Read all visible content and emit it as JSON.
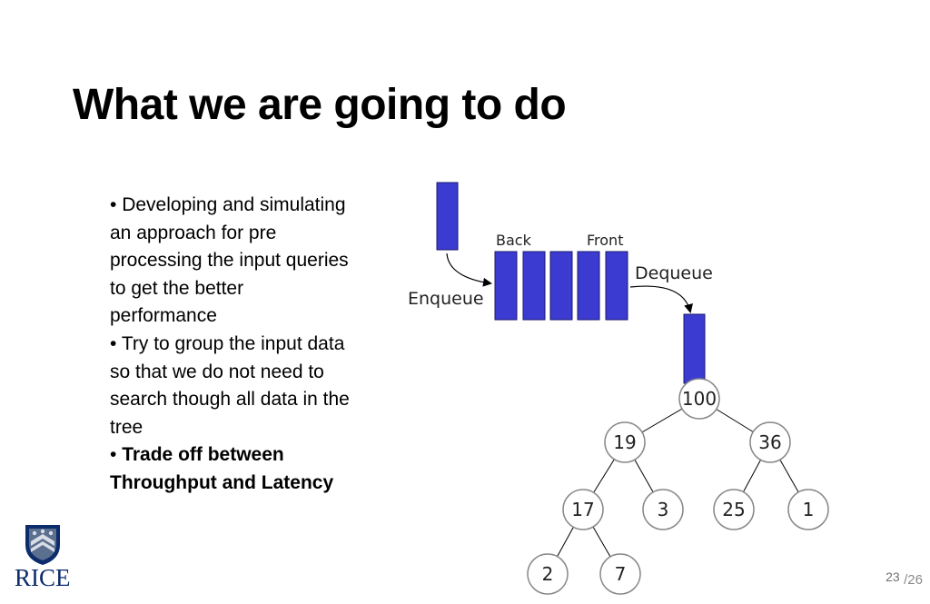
{
  "slide": {
    "title": "What we are going to do",
    "bullets": [
      {
        "marker": "•",
        "text": "Developing and simulating an approach for pre processing the input queries to get the better performance"
      },
      {
        "marker": "•",
        "text": "Try to group the input data so that we do not need to search though all data in the tree"
      },
      {
        "marker": "•",
        "text": "Trade off between Throughput and Latency"
      }
    ],
    "page_current": "23",
    "page_total": "/26"
  },
  "diagram": {
    "labels": {
      "back": "Back",
      "front": "Front",
      "enqueue": "Enqueue",
      "dequeue": "Dequeue"
    },
    "queue_color": "#3b3bd1",
    "tree": {
      "root": "100",
      "left": "19",
      "right": "36",
      "left_left": "17",
      "left_right": "3",
      "right_left": "25",
      "right_right": "1",
      "left_left_left": "2",
      "left_left_right": "7"
    }
  },
  "logo": {
    "text": "RICE",
    "color": "#0d2c6b"
  }
}
